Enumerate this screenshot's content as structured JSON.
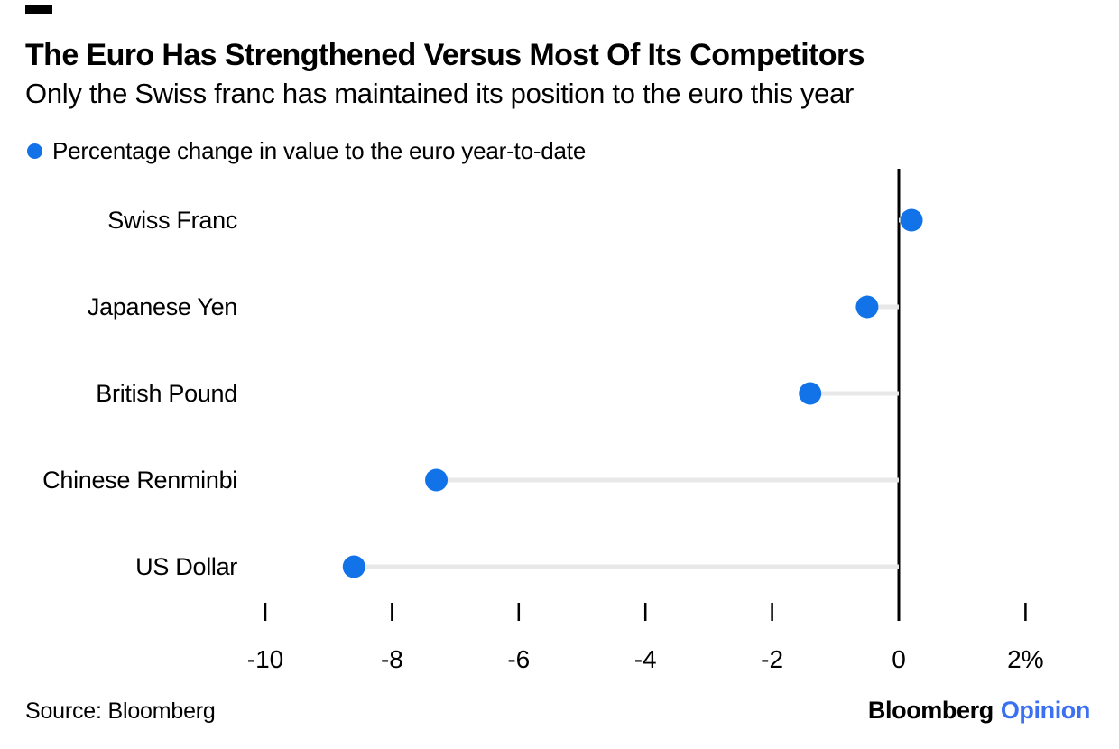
{
  "chart_data": {
    "type": "scatter",
    "orientation": "horizontal",
    "title": "The Euro Has Strengthened Versus Most Of Its Competitors",
    "subtitle": "Only the Swiss franc has maintained its position to the euro this year",
    "legend_label": "Percentage change in value to the euro year-to-date",
    "legend_position": "top-left",
    "categories": [
      "Swiss Franc",
      "Japanese Yen",
      "British Pound",
      "Chinese Renminbi",
      "US Dollar"
    ],
    "values": [
      0.2,
      -0.5,
      -1.4,
      -7.3,
      -8.6
    ],
    "unit": "%",
    "baseline": 0,
    "xlim": [
      -10.5,
      2.5
    ],
    "grid": false,
    "x_ticks": [
      {
        "value": -10,
        "label": "-10"
      },
      {
        "value": -8,
        "label": "-8"
      },
      {
        "value": -6,
        "label": "-6"
      },
      {
        "value": -4,
        "label": "-4"
      },
      {
        "value": -2,
        "label": "-2"
      },
      {
        "value": 0,
        "label": "0"
      },
      {
        "value": 2,
        "label": "2%"
      }
    ],
    "colors": {
      "dot": "#1273e8",
      "connector": "#e8e8e8",
      "axis": "#000000",
      "text": "#000000"
    }
  },
  "footer": {
    "source": "Source: Bloomberg",
    "brand": "Bloomberg",
    "brand_suffix": "Opinion",
    "brand_suffix_color": "#3b70f2"
  }
}
